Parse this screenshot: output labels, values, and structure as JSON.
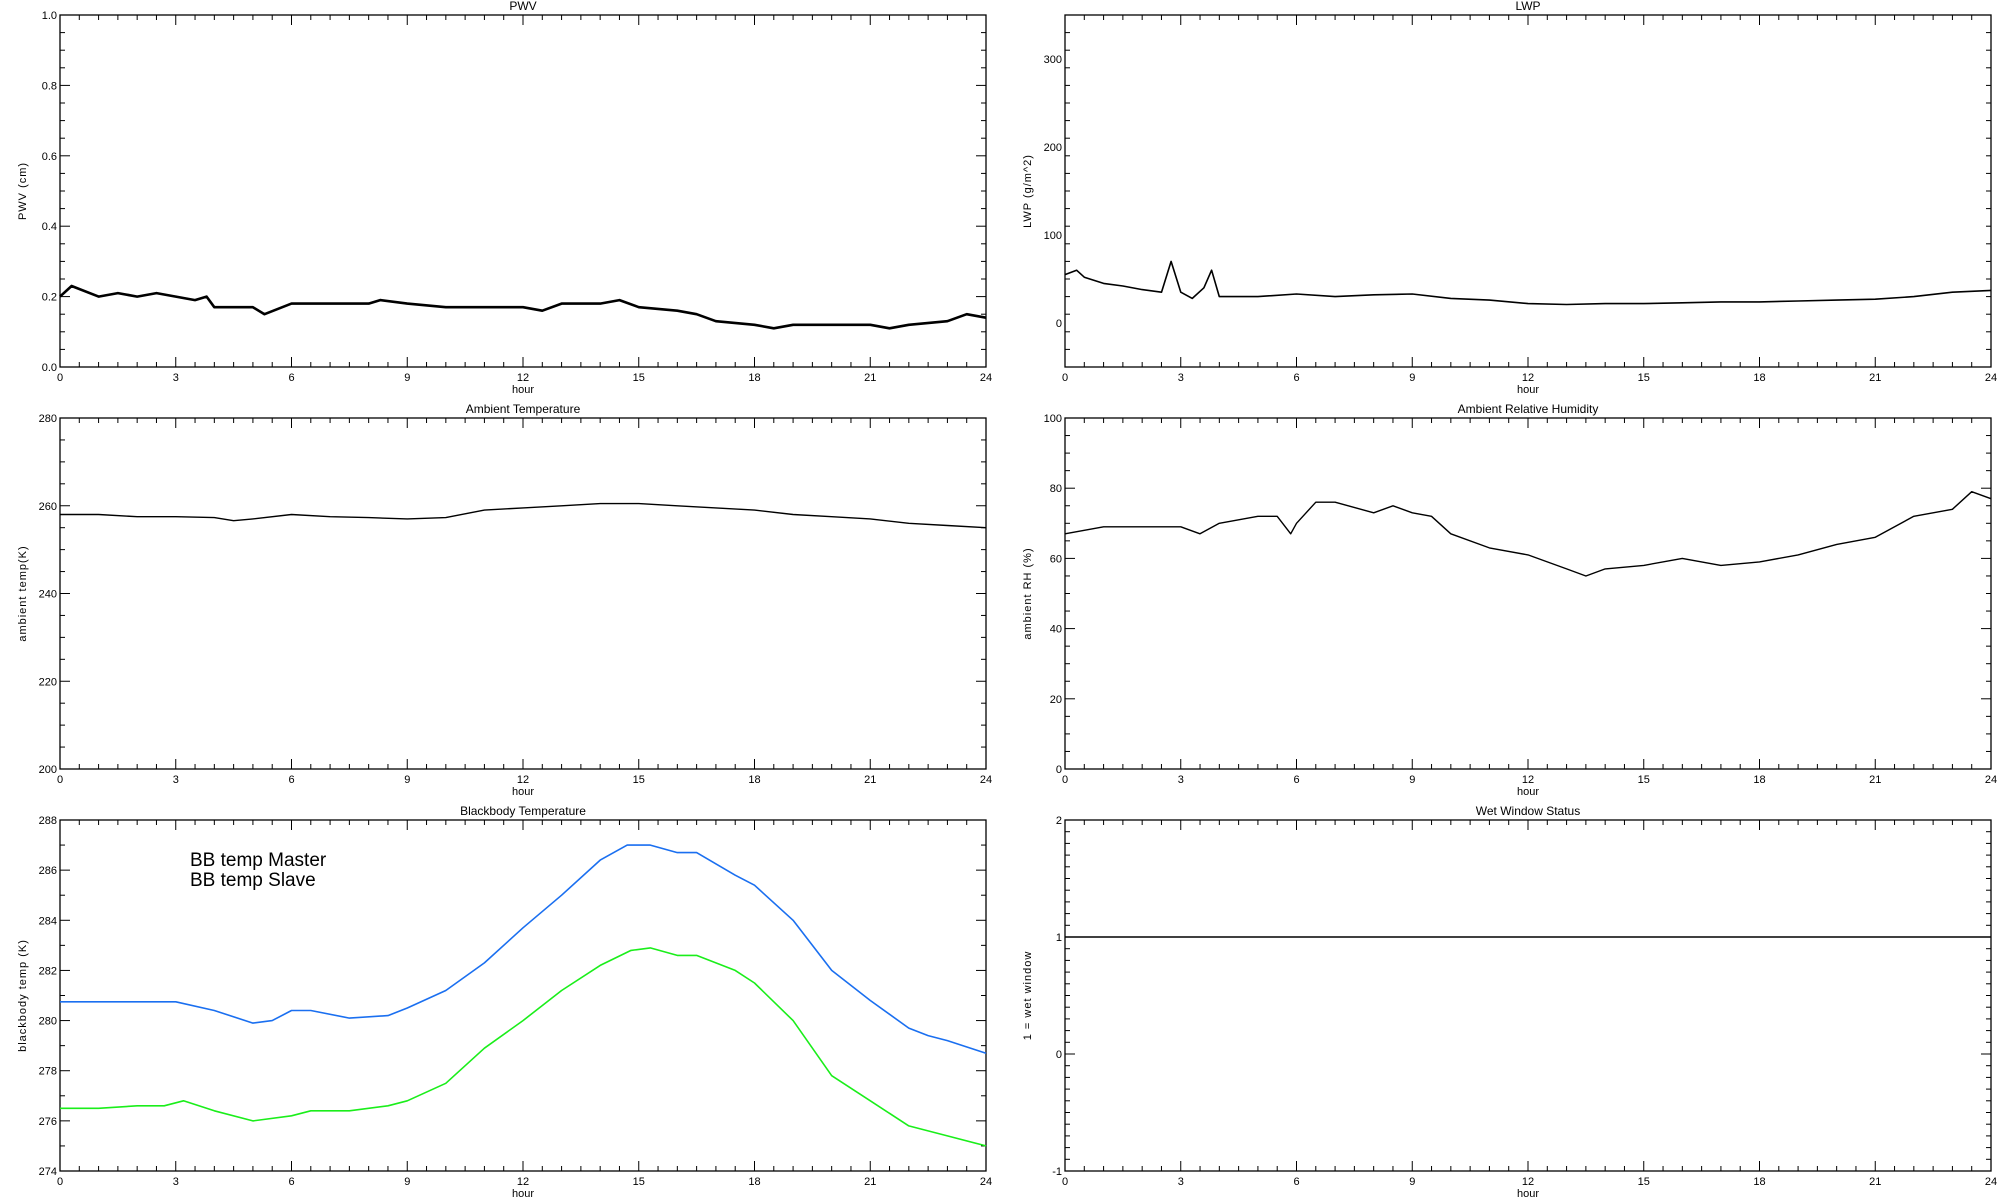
{
  "chart_data": [
    {
      "type": "line",
      "id": "pwv",
      "title": "PWV",
      "xlabel": "hour",
      "ylabel": "PWV (cm)",
      "xlim": [
        0,
        24
      ],
      "ylim": [
        0,
        1
      ],
      "xticks": [
        "0",
        "3",
        "6",
        "9",
        "12",
        "15",
        "18",
        "21",
        "24"
      ],
      "yticks": [
        "0.0",
        "0.2",
        "0.4",
        "0.6",
        "0.8",
        "1.0"
      ],
      "series": [
        {
          "name": "PWV",
          "color": "#000000",
          "x": [
            0,
            0.3,
            1,
            1.5,
            2,
            2.5,
            3,
            3.5,
            3.8,
            4,
            5,
            5.3,
            6,
            7,
            8,
            8.3,
            9,
            10,
            11,
            12,
            12.5,
            13,
            14,
            14.5,
            15,
            16,
            16.5,
            17,
            18,
            18.5,
            19,
            20,
            21,
            21.5,
            22,
            23,
            23.5,
            24
          ],
          "y": [
            0.2,
            0.23,
            0.2,
            0.21,
            0.2,
            0.21,
            0.2,
            0.19,
            0.2,
            0.17,
            0.17,
            0.15,
            0.18,
            0.18,
            0.18,
            0.19,
            0.18,
            0.17,
            0.17,
            0.17,
            0.16,
            0.18,
            0.18,
            0.19,
            0.17,
            0.16,
            0.15,
            0.13,
            0.12,
            0.11,
            0.12,
            0.12,
            0.12,
            0.11,
            0.12,
            0.13,
            0.15,
            0.14
          ]
        }
      ]
    },
    {
      "type": "line",
      "id": "lwp",
      "title": "LWP",
      "xlabel": "hour",
      "ylabel": "LWP (g/m^2)",
      "xlim": [
        0,
        24
      ],
      "ylim": [
        -50,
        350
      ],
      "xticks": [
        "0",
        "3",
        "6",
        "9",
        "12",
        "15",
        "18",
        "21",
        "24"
      ],
      "yticks": [
        "0",
        "100",
        "200",
        "300"
      ],
      "series": [
        {
          "name": "LWP",
          "color": "#000000",
          "x": [
            0,
            0.3,
            0.5,
            1,
            1.5,
            2,
            2.5,
            2.75,
            3,
            3.3,
            3.6,
            3.8,
            4,
            5,
            6,
            7,
            8,
            9,
            10,
            11,
            12,
            13,
            14,
            15,
            16,
            17,
            18,
            19,
            20,
            21,
            22,
            23,
            24
          ],
          "y": [
            55,
            60,
            52,
            45,
            42,
            38,
            35,
            70,
            35,
            28,
            40,
            60,
            30,
            30,
            33,
            30,
            32,
            33,
            28,
            26,
            22,
            21,
            22,
            22,
            23,
            24,
            24,
            25,
            26,
            27,
            30,
            35,
            37
          ]
        }
      ]
    },
    {
      "type": "line",
      "id": "ambient-temperature",
      "title": "Ambient Temperature",
      "xlabel": "hour",
      "ylabel": "ambient temp(K)",
      "xlim": [
        0,
        24
      ],
      "ylim": [
        200,
        280
      ],
      "xticks": [
        "0",
        "3",
        "6",
        "9",
        "12",
        "15",
        "18",
        "21",
        "24"
      ],
      "yticks": [
        "200",
        "220",
        "240",
        "260",
        "280"
      ],
      "series": [
        {
          "name": "ambient temp",
          "color": "#000000",
          "x": [
            0,
            1,
            2,
            3,
            4,
            4.5,
            5,
            6,
            7,
            8,
            9,
            10,
            11,
            12,
            13,
            14,
            15,
            16,
            17,
            18,
            19,
            20,
            21,
            22,
            23,
            24
          ],
          "y": [
            258,
            258,
            257.5,
            257.5,
            257.3,
            256.6,
            257,
            258,
            257.5,
            257.3,
            257,
            257.3,
            259,
            259.5,
            260,
            260.5,
            260.5,
            260,
            259.5,
            259,
            258,
            257.5,
            257,
            256,
            255.5,
            255
          ]
        }
      ]
    },
    {
      "type": "line",
      "id": "ambient-relative-humidity",
      "title": "Ambient Relative Humidity",
      "xlabel": "hour",
      "ylabel": "ambient RH (%)",
      "xlim": [
        0,
        24
      ],
      "ylim": [
        0,
        100
      ],
      "xticks": [
        "0",
        "3",
        "6",
        "9",
        "12",
        "15",
        "18",
        "21",
        "24"
      ],
      "yticks": [
        "0",
        "20",
        "40",
        "60",
        "80",
        "100"
      ],
      "series": [
        {
          "name": "ambient RH",
          "color": "#000000",
          "x": [
            0,
            1,
            2,
            3,
            3.5,
            4,
            5,
            5.5,
            5.85,
            6,
            6.5,
            7,
            8,
            8.5,
            9,
            9.5,
            10,
            11,
            12,
            13,
            13.5,
            14,
            15,
            16,
            17,
            18,
            19,
            20,
            21,
            22,
            23,
            23.5,
            24
          ],
          "y": [
            67,
            69,
            69,
            69,
            67,
            70,
            72,
            72,
            67,
            70,
            76,
            76,
            73,
            75,
            73,
            72,
            67,
            63,
            61,
            57,
            55,
            57,
            58,
            60,
            58,
            59,
            61,
            64,
            66,
            72,
            74,
            79,
            77
          ]
        }
      ]
    },
    {
      "type": "line",
      "id": "blackbody-temperature",
      "title": "Blackbody Temperature",
      "xlabel": "hour",
      "ylabel": "blackbody temp (K)",
      "xlim": [
        0,
        24
      ],
      "ylim": [
        274,
        288
      ],
      "xticks": [
        "0",
        "3",
        "6",
        "9",
        "12",
        "15",
        "18",
        "21",
        "24"
      ],
      "yticks": [
        "274",
        "276",
        "278",
        "280",
        "282",
        "284",
        "286",
        "288"
      ],
      "legend": "top-left",
      "series": [
        {
          "name": "BB temp Master",
          "color": "#1a6ff0",
          "x": [
            0,
            1,
            2,
            3,
            4,
            5,
            5.5,
            6,
            6.5,
            7.5,
            8.5,
            9,
            10,
            11,
            12,
            13,
            14,
            14.7,
            15.3,
            16,
            16.5,
            17.5,
            18,
            19,
            20,
            21,
            22,
            22.5,
            23,
            24
          ],
          "y": [
            280.75,
            280.75,
            280.75,
            280.75,
            280.4,
            279.9,
            280.0,
            280.4,
            280.4,
            280.1,
            280.2,
            280.5,
            281.2,
            282.3,
            283.7,
            285.0,
            286.4,
            287.0,
            287.0,
            286.7,
            286.7,
            285.8,
            285.4,
            284.0,
            282.0,
            280.8,
            279.7,
            279.4,
            279.2,
            278.7
          ]
        },
        {
          "name": "BB temp Slave",
          "color": "#1aee1a",
          "x": [
            0,
            1,
            2,
            2.7,
            3.2,
            4,
            5,
            6,
            6.5,
            7.5,
            8.5,
            9,
            10,
            11,
            12,
            13,
            14,
            14.8,
            15.3,
            16,
            16.5,
            17.5,
            18,
            19,
            20,
            21,
            22,
            23,
            24
          ],
          "y": [
            276.5,
            276.5,
            276.6,
            276.6,
            276.8,
            276.4,
            276.0,
            276.2,
            276.4,
            276.4,
            276.6,
            276.8,
            277.5,
            278.9,
            280.0,
            281.2,
            282.2,
            282.8,
            282.9,
            282.6,
            282.6,
            282.0,
            281.5,
            280.0,
            277.8,
            276.8,
            275.8,
            275.4,
            275.0
          ]
        }
      ]
    },
    {
      "type": "line",
      "id": "wet-window-status",
      "title": "Wet Window Status",
      "xlabel": "hour",
      "ylabel": "1 = wet window",
      "xlim": [
        0,
        24
      ],
      "ylim": [
        -1,
        2
      ],
      "xticks": [
        "0",
        "3",
        "6",
        "9",
        "12",
        "15",
        "18",
        "21",
        "24"
      ],
      "yticks": [
        "-1",
        "0",
        "1",
        "2"
      ],
      "series": [
        {
          "name": "wet window",
          "color": "#000000",
          "x": [
            0,
            24
          ],
          "y": [
            1,
            1
          ]
        }
      ]
    }
  ]
}
